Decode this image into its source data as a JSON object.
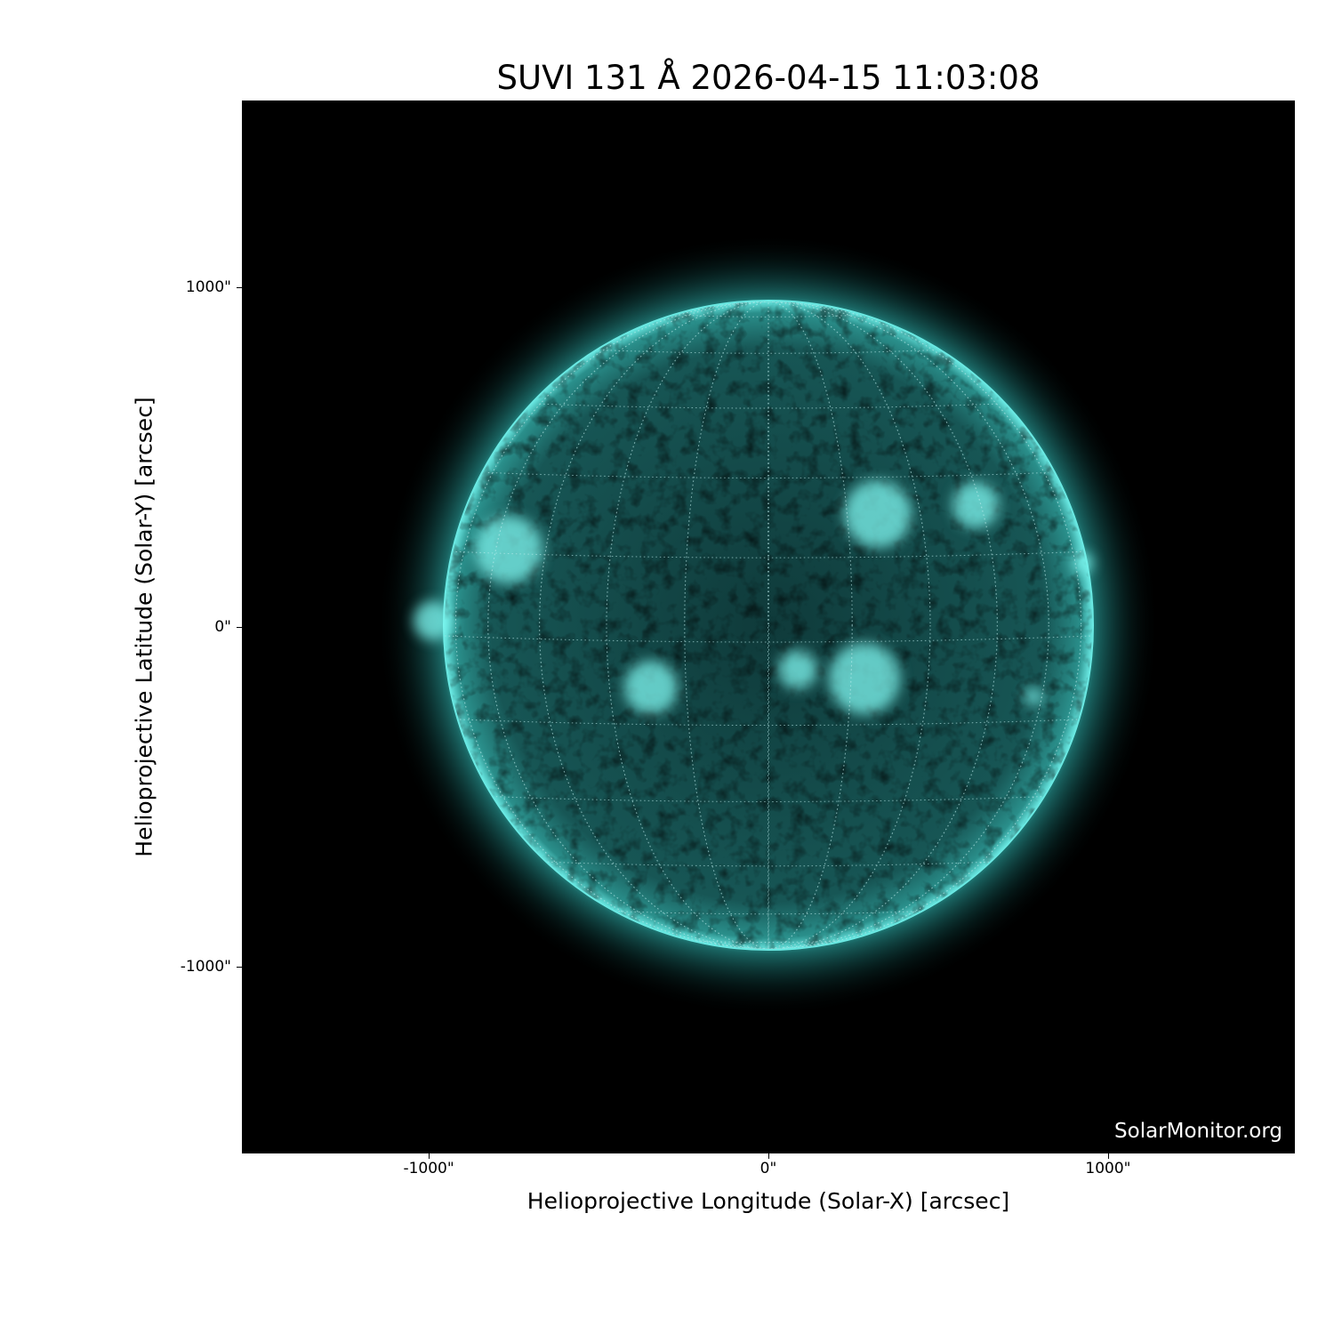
{
  "chart_data": {
    "type": "image",
    "title": "SUVI 131 Å 2026-04-15 11:03:08",
    "xlabel": "Helioprojective Longitude (Solar-X) [arcsec]",
    "ylabel": "Helioprojective Latitude (Solar-Y) [arcsec]",
    "xlim": [
      -1550,
      1550
    ],
    "ylim": [
      -1550,
      1550
    ],
    "x_ticks": [
      {
        "value": -1000,
        "label": "-1000\""
      },
      {
        "value": 0,
        "label": "0\""
      },
      {
        "value": 1000,
        "label": "1000\""
      }
    ],
    "y_ticks": [
      {
        "value": 1000,
        "label": "1000\""
      },
      {
        "value": 0,
        "label": "0\""
      },
      {
        "value": -1000,
        "label": "-1000\""
      }
    ],
    "colormap_color": "#3fe0d8",
    "grid": "heliographic, dotted",
    "watermark": "SolarMonitor.org"
  }
}
